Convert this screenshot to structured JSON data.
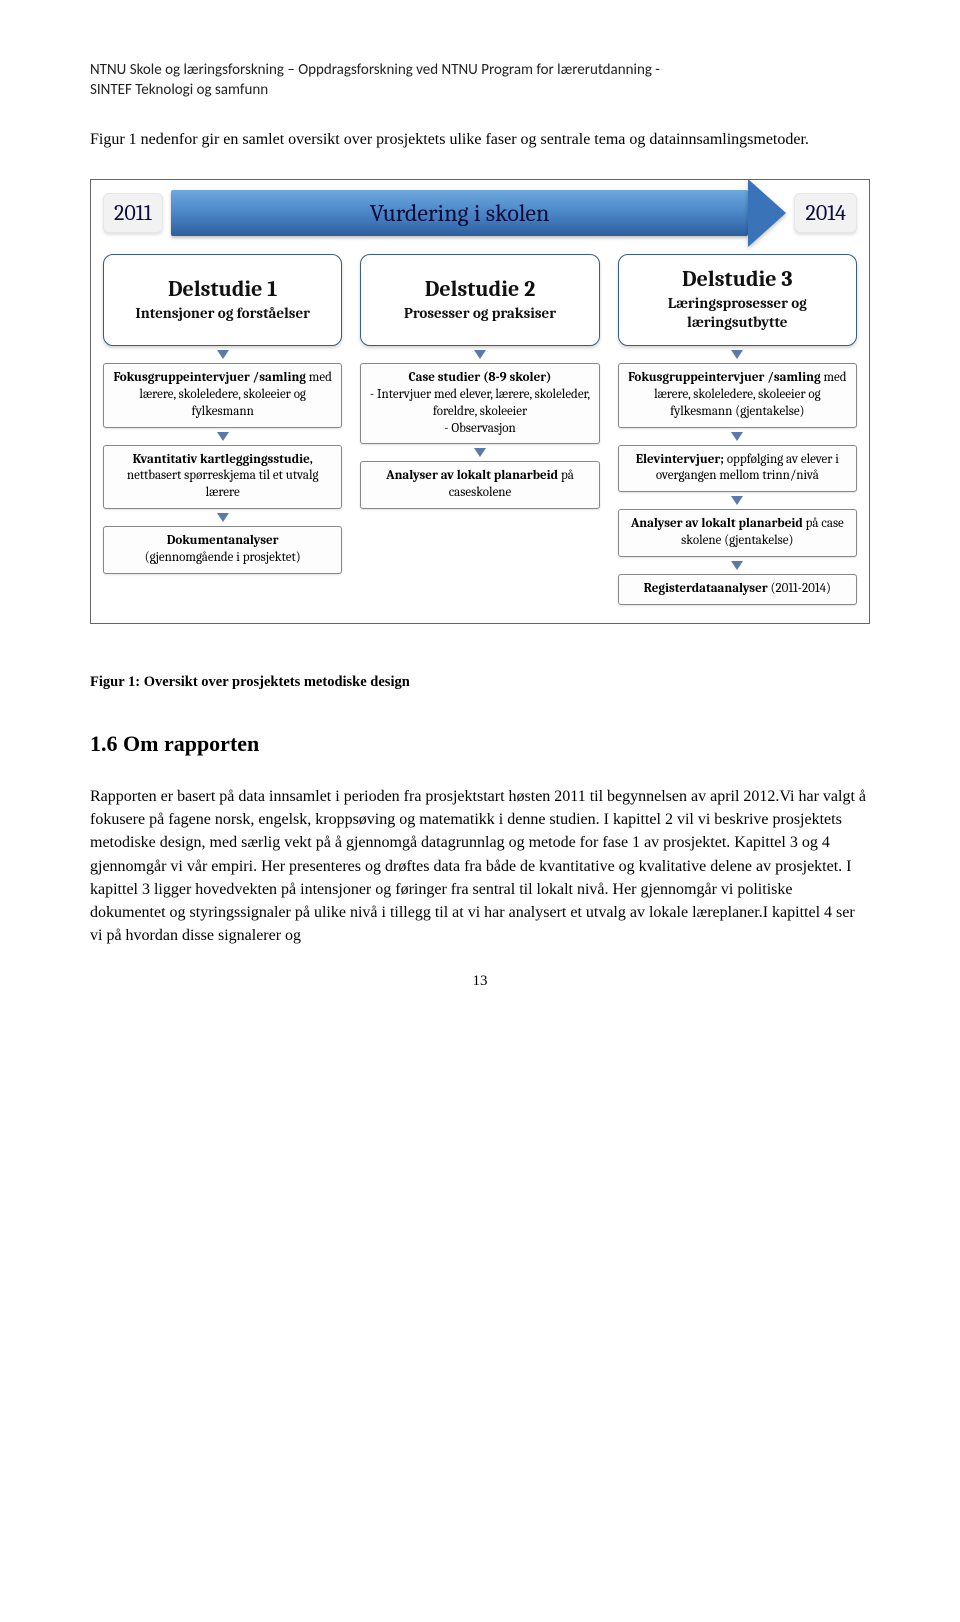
{
  "header": {
    "line1": "NTNU Skole og læringsforskning – Oppdragsforskning ved NTNU Program for lærerutdanning  -",
    "line2": "SINTEF Teknologi og samfunn"
  },
  "intro": "Figur 1 nedenfor gir en samlet oversikt over prosjektets ulike faser og sentrale tema og datainnsamlingsmetoder.",
  "diagram": {
    "year_start": "2011",
    "year_end": "2014",
    "arrow_label": "Vurdering i skolen",
    "del1": {
      "title": "Delstudie 1",
      "sub": "Intensjoner og forståelser"
    },
    "del2": {
      "title": "Delstudie 2",
      "sub": "Prosesser og praksiser"
    },
    "del3": {
      "title": "Delstudie 3",
      "sub": "Læringsprosesser og læringsutbytte"
    },
    "col1": {
      "a_bold": "Fokusgruppeintervjuer /samling",
      "a_rest": "med lærere, skoleledere, skoleeier og fylkesmann",
      "b_bold": "Kvantitativ kartleggingsstudie,",
      "b_rest": "nettbasert spørreskjema til et utvalg lærere",
      "c_bold": "Dokumentanalyser",
      "c_rest": "(gjennomgående i prosjektet)"
    },
    "col2": {
      "a_bold": "Case studier (8-9 skoler)",
      "a_l1": "- Intervjuer med elever, lærere, skoleleder, foreldre, skoleeier",
      "a_l2": "- Observasjon",
      "b_bold": "Analyser av lokalt planarbeid",
      "b_rest": " på caseskolene"
    },
    "col3": {
      "a_bold": "Fokusgruppeintervjuer /samling",
      "a_rest": "med lærere, skoleledere, skoleeier og fylkesmann (gjentakelse)",
      "b_bold": "Elevintervjuer;",
      "b_rest": " oppfølging av elever i overgangen mellom trinn/nivå",
      "c_bold": "Analyser av lokalt planarbeid",
      "c_rest": " på case skolene (gjentakelse)",
      "d_bold": "Registerdataanalyser",
      "d_rest": " (2011-2014)"
    }
  },
  "caption": "Figur 1: Oversikt over prosjektets metodiske design",
  "section_heading": "1.6 Om rapporten",
  "body": "Rapporten er basert på data innsamlet i perioden fra prosjektstart høsten 2011 til begynnelsen av april 2012.Vi har valgt å fokusere på fagene norsk, engelsk, kroppsøving og matematikk i denne studien. I kapittel 2 vil vi beskrive prosjektets metodiske design, med særlig vekt på å gjennomgå datagrunnlag og metode for fase 1 av prosjektet. Kapittel 3 og 4 gjennomgår vi vår empiri. Her presenteres og drøftes data fra både de kvantitative og kvalitative delene av prosjektet. I kapittel 3 ligger hovedvekten på intensjoner og føringer fra sentral til lokalt nivå. Her gjennomgår vi politiske dokumentet og styringssignaler på ulike nivå i tillegg til at vi har analysert et utvalg av lokale læreplaner.I kapittel 4 ser vi på hvordan disse signalerer og",
  "page_number": "13"
}
